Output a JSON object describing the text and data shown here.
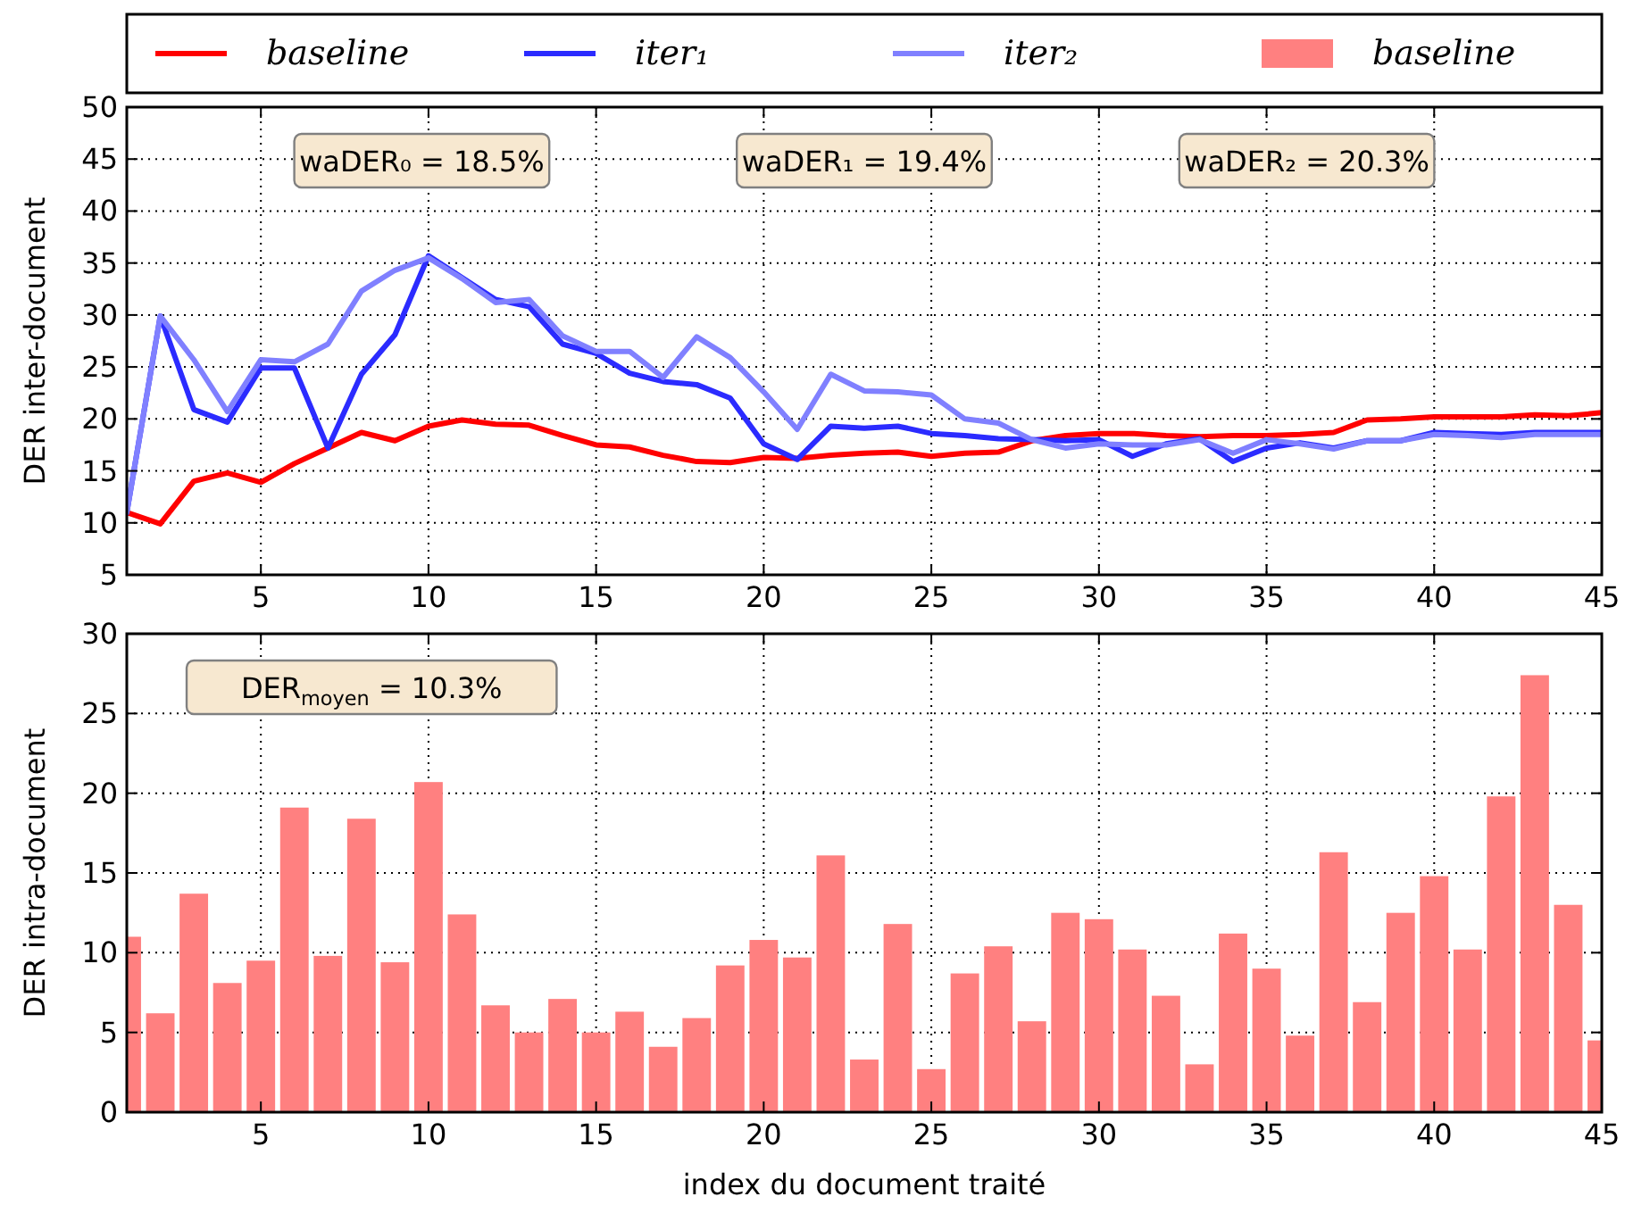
{
  "chart_data": [
    {
      "type": "line",
      "ylabel": "DER inter-document",
      "x": [
        1,
        2,
        3,
        4,
        5,
        6,
        7,
        8,
        9,
        10,
        11,
        12,
        13,
        14,
        15,
        16,
        17,
        18,
        19,
        20,
        21,
        22,
        23,
        24,
        25,
        26,
        27,
        28,
        29,
        30,
        31,
        32,
        33,
        34,
        35,
        36,
        37,
        38,
        39,
        40,
        41,
        42,
        43,
        44,
        45
      ],
      "xlim": [
        1,
        45
      ],
      "xticks": [
        5,
        10,
        15,
        20,
        25,
        30,
        35,
        40,
        45
      ],
      "ylim": [
        5,
        50
      ],
      "yticks": [
        5,
        10,
        15,
        20,
        25,
        30,
        35,
        40,
        45,
        50
      ],
      "grid": true,
      "legend": "top",
      "line_style": "solid",
      "marker": "none",
      "annotations": [
        "waDER₀ = 18.5%",
        "waDER₁ = 19.4%",
        "waDER₂ = 20.3%"
      ],
      "series": [
        {
          "name": "baseline",
          "color": "#ff0000",
          "values": [
            11.0,
            9.9,
            14.0,
            14.8,
            13.9,
            15.7,
            17.2,
            18.7,
            17.9,
            19.3,
            19.9,
            19.5,
            19.4,
            18.4,
            17.5,
            17.3,
            16.5,
            15.9,
            15.8,
            16.3,
            16.2,
            16.5,
            16.7,
            16.8,
            16.4,
            16.7,
            16.8,
            17.9,
            18.4,
            18.6,
            18.6,
            18.4,
            18.3,
            18.4,
            18.4,
            18.5,
            18.7,
            19.9,
            20.0,
            20.2,
            20.2,
            20.2,
            20.4,
            20.3,
            20.6
          ]
        },
        {
          "name": "iter₁",
          "color": "#2b2bff",
          "values": [
            11.0,
            29.9,
            20.9,
            19.7,
            24.9,
            24.9,
            17.2,
            24.3,
            28.1,
            35.7,
            33.6,
            31.5,
            30.8,
            27.2,
            26.3,
            24.4,
            23.6,
            23.3,
            22.0,
            17.6,
            16.1,
            19.3,
            19.1,
            19.3,
            18.6,
            18.4,
            18.1,
            18.0,
            17.9,
            18.0,
            16.4,
            17.6,
            18.1,
            15.9,
            17.2,
            17.7,
            17.2,
            17.9,
            17.9,
            18.7,
            18.6,
            18.5,
            18.7,
            18.7,
            18.7
          ]
        },
        {
          "name": "iter₂",
          "color": "#8080ff",
          "values": [
            11.0,
            29.9,
            25.7,
            20.7,
            25.7,
            25.5,
            27.2,
            32.3,
            34.3,
            35.5,
            33.5,
            31.2,
            31.5,
            28.0,
            26.5,
            26.5,
            24.0,
            27.9,
            25.9,
            22.6,
            19.0,
            24.3,
            22.7,
            22.6,
            22.3,
            20.0,
            19.6,
            18.0,
            17.2,
            17.6,
            17.5,
            17.5,
            18.0,
            16.7,
            18.0,
            17.6,
            17.1,
            17.9,
            17.9,
            18.5,
            18.4,
            18.2,
            18.5,
            18.5,
            18.5
          ]
        }
      ]
    },
    {
      "type": "bar",
      "ylabel": "DER intra-document",
      "xlabel": "index du document traité",
      "x": [
        1,
        2,
        3,
        4,
        5,
        6,
        7,
        8,
        9,
        10,
        11,
        12,
        13,
        14,
        15,
        16,
        17,
        18,
        19,
        20,
        21,
        22,
        23,
        24,
        25,
        26,
        27,
        28,
        29,
        30,
        31,
        32,
        33,
        34,
        35,
        36,
        37,
        38,
        39,
        40,
        41,
        42,
        43,
        44,
        45
      ],
      "xlim": [
        1,
        45
      ],
      "xticks": [
        5,
        10,
        15,
        20,
        25,
        30,
        35,
        40,
        45
      ],
      "ylim": [
        0,
        30
      ],
      "yticks": [
        0,
        5,
        10,
        15,
        20,
        25,
        30
      ],
      "grid": true,
      "legend": "top",
      "annotations": [
        "DER$_{moyen}$ = 10.3%"
      ],
      "series": [
        {
          "name": "baseline",
          "color": "#ff8080",
          "values": [
            11.0,
            6.2,
            13.7,
            8.1,
            9.5,
            19.1,
            9.8,
            18.4,
            9.4,
            20.7,
            12.4,
            6.7,
            5.0,
            7.1,
            5.0,
            6.3,
            4.1,
            5.9,
            9.2,
            10.8,
            9.7,
            16.1,
            3.3,
            11.8,
            2.7,
            8.7,
            10.4,
            5.7,
            12.5,
            12.1,
            10.2,
            7.3,
            3.0,
            11.2,
            9.0,
            4.8,
            16.3,
            6.9,
            12.5,
            14.8,
            10.2,
            19.8,
            27.4,
            13.0,
            4.5
          ]
        }
      ]
    }
  ]
}
